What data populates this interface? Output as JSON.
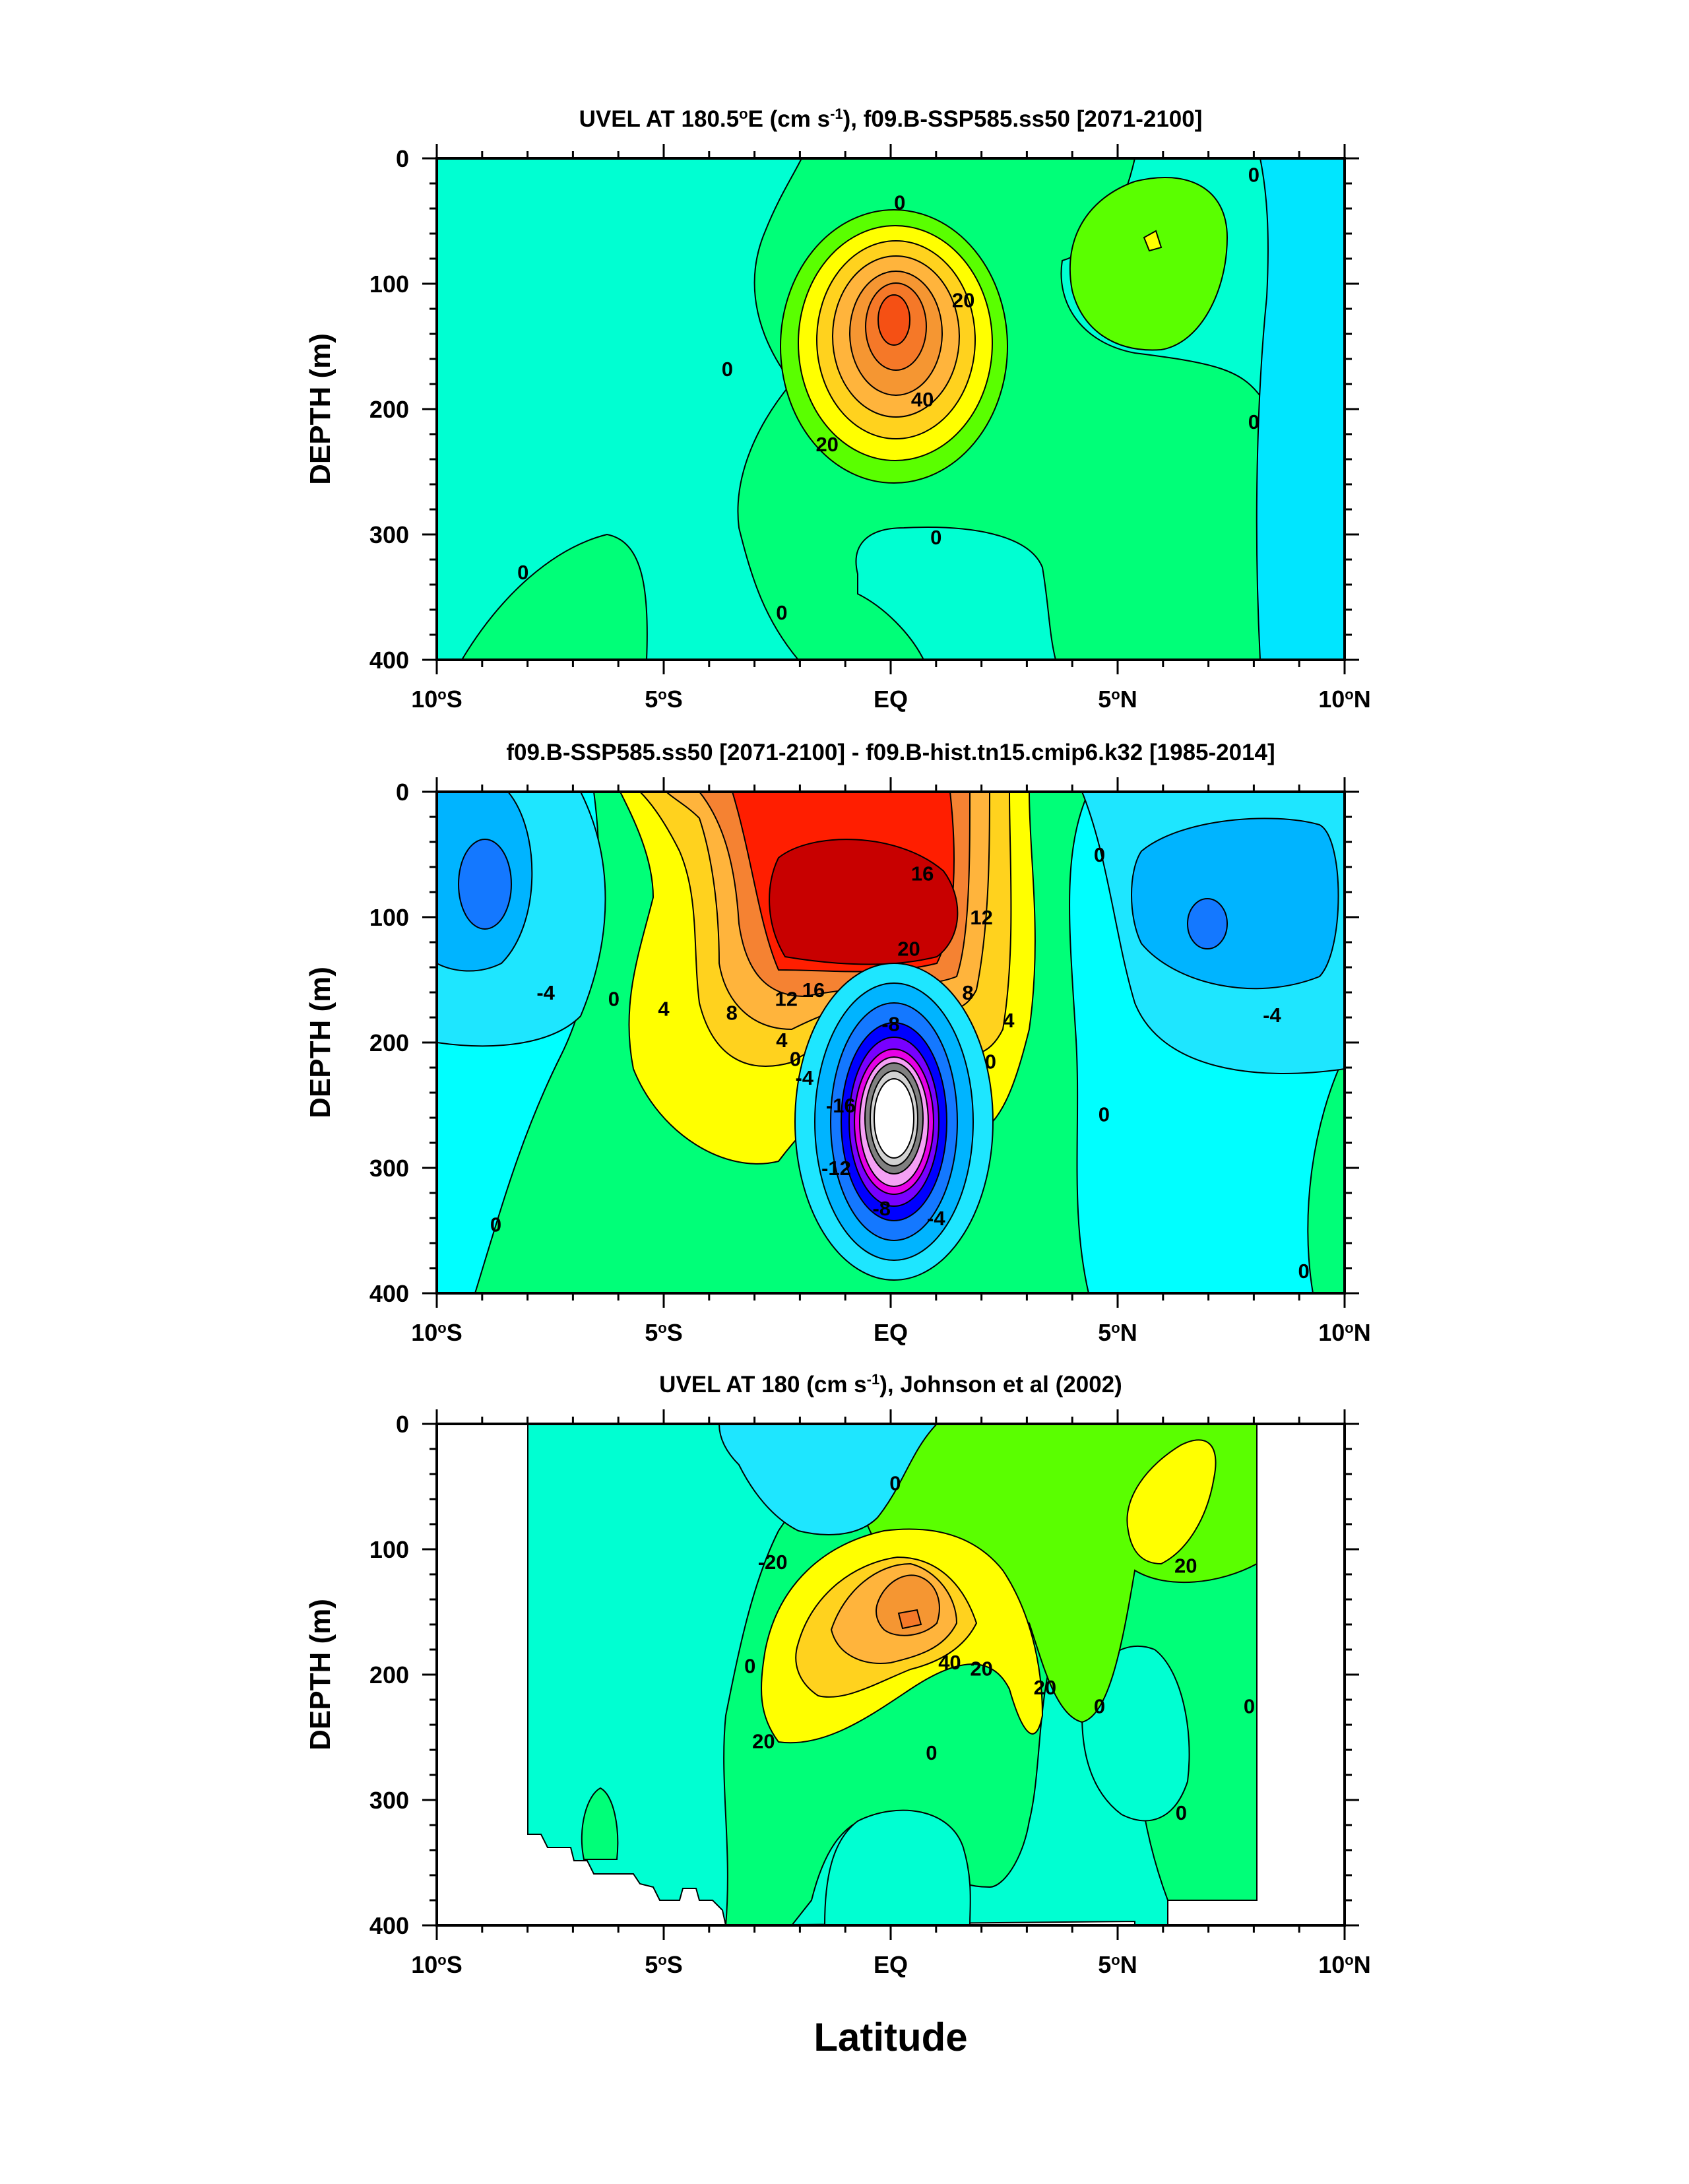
{
  "figure": {
    "xlabel": "Latitude",
    "xticks": [
      "10°S",
      "5°S",
      "EQ",
      "5°N",
      "10°N"
    ],
    "yticks": [
      "0",
      "100",
      "200",
      "300",
      "400"
    ],
    "ylabel": "DEPTH (m)"
  },
  "colors": {
    "cyan": "#00ffff",
    "aqua": "#00ffd2",
    "sky": "#1ee6ff",
    "skyblue": "#00b4ff",
    "blue": "#1478ff",
    "navy": "#0000ff",
    "green": "#00ff78",
    "lime": "#5aff00",
    "yellow": "#ffff00",
    "gold": "#ffd21e",
    "lightorange": "#ffb43c",
    "orange": "#f59632",
    "orangered": "#f56414",
    "red": "#ff1e00",
    "darkred": "#c80000",
    "magenta": "#e600e6",
    "purple": "#7800ff",
    "gray": "#808080",
    "white": "#ffffff"
  },
  "chart_data": [
    {
      "type": "contour",
      "title_main": "UVEL AT 180.5",
      "title_deg": "o",
      "title_rest": "E (cm s",
      "title_sup": "-1",
      "title_tail": "), f09.B-SSP585.ss50 [2071-2100]",
      "x_range": [
        -10,
        10
      ],
      "y_range": [
        0,
        400
      ],
      "contour_labels": [
        {
          "text": "0",
          "x": 0.2,
          "y": 35
        },
        {
          "text": "0",
          "x": 8,
          "y": 13
        },
        {
          "text": "20",
          "x": 1.6,
          "y": 113
        },
        {
          "text": "0",
          "x": -3.6,
          "y": 168
        },
        {
          "text": "40",
          "x": 0.7,
          "y": 192
        },
        {
          "text": "0",
          "x": 8,
          "y": 210
        },
        {
          "text": "20",
          "x": -1.4,
          "y": 228
        },
        {
          "text": "0",
          "x": 1,
          "y": 302
        },
        {
          "text": "0",
          "x": -8.1,
          "y": 330
        },
        {
          "text": "0",
          "x": -2.4,
          "y": 362
        }
      ]
    },
    {
      "type": "contour",
      "title_main": "f09.B-SSP585.ss50 [2071-2100] - f09.B-hist.tn15.cmip6.k32 [1985-2014]",
      "x_range": [
        -10,
        10
      ],
      "y_range": [
        0,
        400
      ],
      "contour_labels": [
        {
          "text": "16",
          "x": 0.7,
          "y": 65
        },
        {
          "text": "12",
          "x": 2,
          "y": 100
        },
        {
          "text": "20",
          "x": 0.4,
          "y": 125
        },
        {
          "text": "12",
          "x": -2.3,
          "y": 165
        },
        {
          "text": "16",
          "x": -1.7,
          "y": 158
        },
        {
          "text": "8",
          "x": 1.7,
          "y": 160
        },
        {
          "text": "8",
          "x": -3.5,
          "y": 176
        },
        {
          "text": "4",
          "x": -5,
          "y": 173
        },
        {
          "text": "4",
          "x": 2.6,
          "y": 182
        },
        {
          "text": "-8",
          "x": 0,
          "y": 185
        },
        {
          "text": "-4",
          "x": 8.4,
          "y": 178
        },
        {
          "text": "-4",
          "x": -7.6,
          "y": 160
        },
        {
          "text": "0",
          "x": -6.1,
          "y": 165
        },
        {
          "text": "0",
          "x": 4.6,
          "y": 50
        },
        {
          "text": "4",
          "x": -2.4,
          "y": 198
        },
        {
          "text": "0",
          "x": -2.1,
          "y": 213
        },
        {
          "text": "-4",
          "x": -1.9,
          "y": 228
        },
        {
          "text": "0",
          "x": 2.2,
          "y": 215
        },
        {
          "text": "0",
          "x": 4.7,
          "y": 257
        },
        {
          "text": "-16",
          "x": -1.1,
          "y": 250
        },
        {
          "text": "-12",
          "x": -1.2,
          "y": 300
        },
        {
          "text": "-8",
          "x": -0.2,
          "y": 332
        },
        {
          "text": "-4",
          "x": 1,
          "y": 340
        },
        {
          "text": "0",
          "x": -8.7,
          "y": 345
        },
        {
          "text": "0",
          "x": 9.1,
          "y": 382
        }
      ]
    },
    {
      "type": "contour",
      "title_main": "UVEL AT 180 (cm s",
      "title_sup": "-1",
      "title_tail": "), Johnson et al (2002)",
      "x_range": [
        -10,
        10
      ],
      "y_range": [
        0,
        400
      ],
      "data_x_range": [
        -8,
        8
      ],
      "contour_labels": [
        {
          "text": "0",
          "x": 0.1,
          "y": 47
        },
        {
          "text": "-20",
          "x": -2.6,
          "y": 110
        },
        {
          "text": "20",
          "x": 6.5,
          "y": 113
        },
        {
          "text": "40",
          "x": 1.3,
          "y": 190
        },
        {
          "text": "20",
          "x": 2,
          "y": 195
        },
        {
          "text": "0",
          "x": -3.1,
          "y": 193
        },
        {
          "text": "20",
          "x": 3.4,
          "y": 210
        },
        {
          "text": "0",
          "x": 4.6,
          "y": 225
        },
        {
          "text": "0",
          "x": 7.9,
          "y": 225
        },
        {
          "text": "20",
          "x": -2.8,
          "y": 253
        },
        {
          "text": "0",
          "x": 0.9,
          "y": 262
        },
        {
          "text": "0",
          "x": 6.4,
          "y": 310
        }
      ]
    }
  ]
}
